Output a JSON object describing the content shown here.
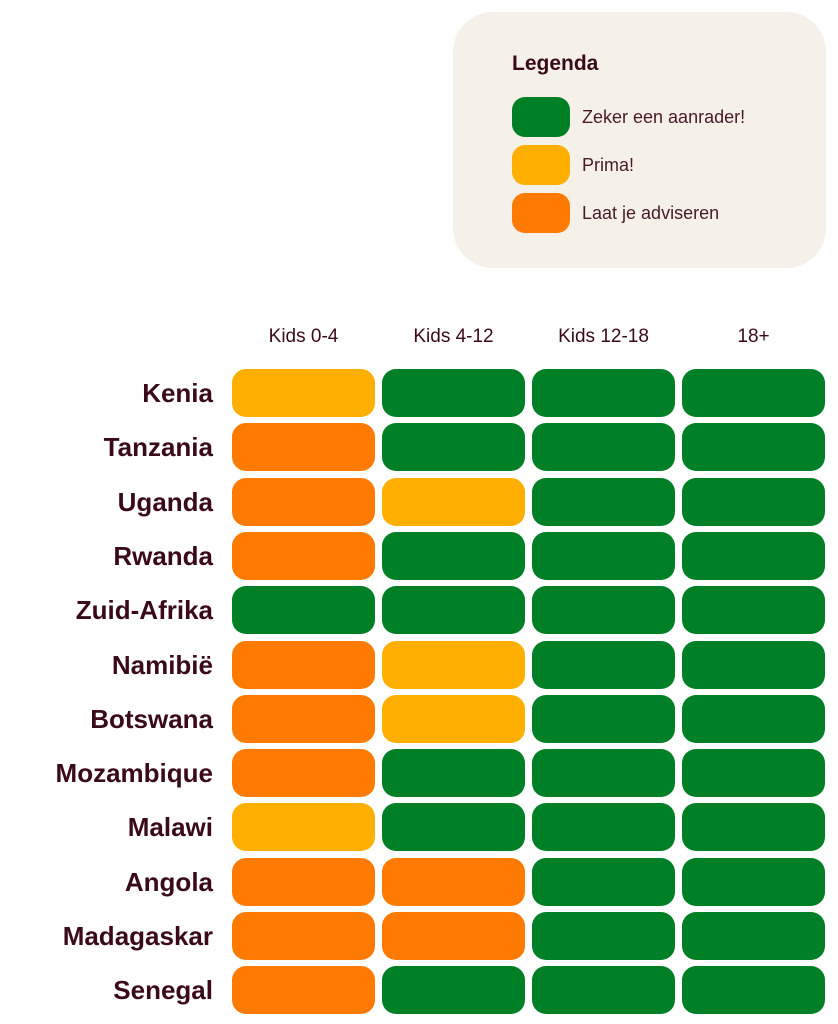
{
  "chart_data": {
    "type": "heatmap",
    "legend": {
      "title": "Legenda",
      "placement": "top-right",
      "items": [
        {
          "key": "G",
          "label": "Zeker een aanrader!",
          "color": "#008026"
        },
        {
          "key": "Y",
          "label": "Prima!",
          "color": "#ffaf00"
        },
        {
          "key": "O",
          "label": "Laat je adviseren",
          "color": "#ff7a00"
        }
      ]
    },
    "columns": [
      "Kids 0-4",
      "Kids 4-12",
      "Kids 12-18",
      "18+"
    ],
    "rows": [
      {
        "label": "Kenia",
        "values": [
          "Y",
          "G",
          "G",
          "G"
        ]
      },
      {
        "label": "Tanzania",
        "values": [
          "O",
          "G",
          "G",
          "G"
        ]
      },
      {
        "label": "Uganda",
        "values": [
          "O",
          "Y",
          "G",
          "G"
        ]
      },
      {
        "label": "Rwanda",
        "values": [
          "O",
          "G",
          "G",
          "G"
        ]
      },
      {
        "label": "Zuid-Afrika",
        "values": [
          "G",
          "G",
          "G",
          "G"
        ]
      },
      {
        "label": "Namibië",
        "values": [
          "O",
          "Y",
          "G",
          "G"
        ]
      },
      {
        "label": "Botswana",
        "values": [
          "O",
          "Y",
          "G",
          "G"
        ]
      },
      {
        "label": "Mozambique",
        "values": [
          "O",
          "G",
          "G",
          "G"
        ]
      },
      {
        "label": "Malawi",
        "values": [
          "Y",
          "G",
          "G",
          "G"
        ]
      },
      {
        "label": "Angola",
        "values": [
          "O",
          "O",
          "G",
          "G"
        ]
      },
      {
        "label": "Madagaskar",
        "values": [
          "O",
          "O",
          "G",
          "G"
        ]
      },
      {
        "label": "Senegal",
        "values": [
          "O",
          "G",
          "G",
          "G"
        ]
      }
    ]
  }
}
